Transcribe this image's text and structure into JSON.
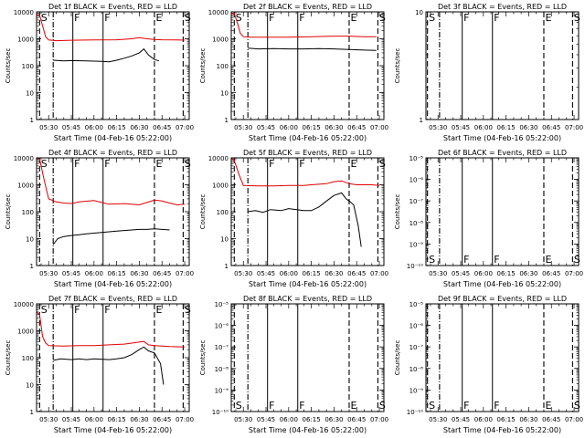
{
  "chart_data": [
    {
      "type": "line",
      "title": "Det 1f BLACK = Events, RED = LLD",
      "xlabel": "Start Time (04-Feb-16 05:22:00)",
      "ylabel": "Counts/sec",
      "xlim": [
        "05:22",
        "07:03"
      ],
      "ylim": [
        1,
        10000
      ],
      "log_y": true,
      "x_ticks": [
        "05:30",
        "05:45",
        "06:00",
        "06:15",
        "06:30",
        "06:45",
        "07:00"
      ],
      "y_ticks": [
        "1",
        "10",
        "100",
        "1000",
        "10000"
      ],
      "markers": [
        {
          "time": "05:24",
          "label": "S",
          "style": "dashed"
        },
        {
          "time": "05:33",
          "label": "",
          "style": "dashdot"
        },
        {
          "time": "05:46",
          "label": "F",
          "style": "solid"
        },
        {
          "time": "06:06",
          "label": "F",
          "style": "solid"
        },
        {
          "time": "06:40",
          "label": "E",
          "style": "dashed"
        },
        {
          "time": "06:59",
          "label": "S",
          "style": "dashed"
        }
      ],
      "series": [
        {
          "color": "#e00000",
          "x": [
            "05:22",
            "05:24",
            "05:26",
            "05:28",
            "05:30",
            "05:35",
            "05:45",
            "06:00",
            "06:15",
            "06:25",
            "06:30",
            "06:35",
            "06:40",
            "06:45",
            "06:55",
            "07:00"
          ],
          "y": [
            8000,
            7600,
            3000,
            1200,
            900,
            850,
            880,
            900,
            920,
            1000,
            1100,
            1000,
            950,
            920,
            900,
            890
          ]
        },
        {
          "color": "#000000",
          "x": [
            "05:33",
            "05:40",
            "05:45",
            "05:55",
            "06:05",
            "06:10",
            "06:15",
            "06:20",
            "06:25",
            "06:30",
            "06:33",
            "06:36",
            "06:40",
            "06:43"
          ],
          "y": [
            160,
            150,
            155,
            150,
            145,
            140,
            160,
            190,
            230,
            300,
            420,
            250,
            170,
            150
          ]
        }
      ]
    },
    {
      "type": "line",
      "title": "Det 2f BLACK = Events, RED = LLD",
      "xlabel": "Start Time (04-Feb-16 05:22:00)",
      "ylabel": "Counts/sec",
      "xlim": [
        "05:22",
        "07:03"
      ],
      "ylim": [
        1,
        10000
      ],
      "log_y": true,
      "x_ticks": [
        "05:30",
        "05:45",
        "06:00",
        "06:15",
        "06:30",
        "06:45",
        "07:00"
      ],
      "y_ticks": [
        "1",
        "10",
        "100",
        "1000",
        "10000"
      ],
      "markers": [
        {
          "time": "05:24",
          "label": "S",
          "style": "dashed"
        },
        {
          "time": "05:33",
          "label": "",
          "style": "dashdot"
        },
        {
          "time": "05:46",
          "label": "F",
          "style": "solid"
        },
        {
          "time": "06:06",
          "label": "F",
          "style": "solid"
        },
        {
          "time": "06:40",
          "label": "E",
          "style": "dashed"
        },
        {
          "time": "06:59",
          "label": "S",
          "style": "dashed"
        }
      ],
      "series": [
        {
          "color": "#e00000",
          "x": [
            "05:22",
            "05:24",
            "05:26",
            "05:28",
            "05:30",
            "05:35",
            "05:45",
            "06:00",
            "06:15",
            "06:30",
            "06:40",
            "06:50",
            "06:58"
          ],
          "y": [
            9000,
            8500,
            4000,
            1600,
            1200,
            1150,
            1150,
            1150,
            1200,
            1250,
            1250,
            1200,
            1200
          ]
        },
        {
          "color": "#000000",
          "x": [
            "05:33",
            "05:40",
            "05:50",
            "06:00",
            "06:10",
            "06:20",
            "06:30",
            "06:40",
            "06:50",
            "06:58"
          ],
          "y": [
            450,
            420,
            430,
            420,
            420,
            430,
            420,
            400,
            380,
            370
          ]
        }
      ]
    },
    {
      "type": "line",
      "title": "Det 3f BLACK = Events, RED = LLD",
      "xlabel": "Start Time (04-Feb-16 05:22:00)",
      "ylabel": "Counts/sec",
      "xlim": [
        "05:22",
        "07:03"
      ],
      "ylim": [
        1,
        10
      ],
      "log_y": true,
      "x_ticks": [
        "05:30",
        "05:45",
        "06:00",
        "06:15",
        "06:30",
        "06:45",
        "07:00"
      ],
      "y_ticks": [
        "1",
        "10"
      ],
      "markers": [
        {
          "time": "05:23",
          "label": "S",
          "style": "dashed"
        },
        {
          "time": "05:31",
          "label": "",
          "style": "dashdot"
        },
        {
          "time": "05:46",
          "label": "F",
          "style": "solid"
        },
        {
          "time": "06:06",
          "label": "F",
          "style": "solid"
        },
        {
          "time": "06:40",
          "label": "E",
          "style": "dashed"
        },
        {
          "time": "06:59",
          "label": "S",
          "style": "dashed"
        }
      ],
      "series": []
    },
    {
      "type": "line",
      "title": "Det 4f BLACK = Events, RED = LLD",
      "xlabel": "Start Time (04-Feb-16 05:22:00)",
      "ylabel": "Counts/sec",
      "xlim": [
        "05:22",
        "07:03"
      ],
      "ylim": [
        1,
        10000
      ],
      "log_y": true,
      "x_ticks": [
        "05:30",
        "05:45",
        "06:00",
        "06:15",
        "06:30",
        "06:45",
        "07:00"
      ],
      "y_ticks": [
        "1",
        "10",
        "100",
        "1000",
        "10000"
      ],
      "markers": [
        {
          "time": "05:24",
          "label": "S",
          "style": "dashed"
        },
        {
          "time": "05:33",
          "label": "",
          "style": "dashdot"
        },
        {
          "time": "05:46",
          "label": "F",
          "style": "solid"
        },
        {
          "time": "06:06",
          "label": "F",
          "style": "solid"
        },
        {
          "time": "06:40",
          "label": "E",
          "style": "dashed"
        },
        {
          "time": "06:59",
          "label": "S",
          "style": "dashed"
        }
      ],
      "series": [
        {
          "color": "#e00000",
          "x": [
            "05:22",
            "05:24",
            "05:27",
            "05:30",
            "05:35",
            "05:40",
            "05:45",
            "05:50",
            "06:00",
            "06:05",
            "06:10",
            "06:20",
            "06:30",
            "06:35",
            "06:40",
            "06:45",
            "06:50",
            "06:55",
            "07:00"
          ],
          "y": [
            10000,
            9000,
            1500,
            300,
            230,
            210,
            200,
            230,
            260,
            220,
            190,
            200,
            180,
            220,
            270,
            250,
            210,
            180,
            190
          ]
        },
        {
          "color": "#000000",
          "x": [
            "05:33",
            "05:36",
            "05:40",
            "05:45",
            "05:50",
            "05:55",
            "06:00",
            "06:05",
            "06:10",
            "06:15",
            "06:20",
            "06:25",
            "06:30",
            "06:35",
            "06:40",
            "06:45",
            "06:50"
          ],
          "y": [
            6,
            10,
            12,
            13,
            14,
            15,
            16,
            17,
            18,
            19,
            20,
            21,
            22,
            22,
            23,
            22,
            21
          ]
        }
      ]
    },
    {
      "type": "line",
      "title": "Det 5f BLACK = Events, RED = LLD",
      "xlabel": "Start Time (04-Feb-16 05:22:00)",
      "ylabel": "Counts/sec",
      "xlim": [
        "05:22",
        "07:03"
      ],
      "ylim": [
        1,
        10000
      ],
      "log_y": true,
      "x_ticks": [
        "05:30",
        "05:45",
        "06:00",
        "06:15",
        "06:30",
        "06:45",
        "07:00"
      ],
      "y_ticks": [
        "1",
        "10",
        "100",
        "1000",
        "10000"
      ],
      "markers": [
        {
          "time": "05:24",
          "label": "",
          "style": "dashed"
        },
        {
          "time": "05:33",
          "label": "",
          "style": "dashdot"
        },
        {
          "time": "05:46",
          "label": "F",
          "style": "solid"
        },
        {
          "time": "06:06",
          "label": "F",
          "style": "solid"
        },
        {
          "time": "06:40",
          "label": "E",
          "style": "dashed"
        },
        {
          "time": "06:59",
          "label": "S",
          "style": "dashed"
        }
      ],
      "series": [
        {
          "color": "#e00000",
          "x": [
            "05:22",
            "05:24",
            "05:27",
            "05:30",
            "05:40",
            "05:50",
            "06:00",
            "06:10",
            "06:15",
            "06:25",
            "06:30",
            "06:35",
            "06:40",
            "06:45",
            "06:55",
            "07:00"
          ],
          "y": [
            10000,
            8000,
            2500,
            950,
            900,
            900,
            950,
            950,
            1000,
            1100,
            1300,
            1400,
            1100,
            1000,
            1000,
            950
          ]
        },
        {
          "color": "#000000",
          "x": [
            "05:33",
            "05:38",
            "05:43",
            "05:48",
            "05:55",
            "06:00",
            "06:10",
            "06:15",
            "06:20",
            "06:25",
            "06:30",
            "06:35",
            "06:38",
            "06:40",
            "06:43",
            "06:46",
            "06:48"
          ],
          "y": [
            100,
            110,
            95,
            120,
            110,
            130,
            110,
            110,
            150,
            250,
            400,
            500,
            300,
            250,
            180,
            30,
            5
          ]
        }
      ]
    },
    {
      "type": "line",
      "title": "Det 6f BLACK = Events, RED = LLD",
      "xlabel": "Start Time (04-Feb-16 05:22:00)",
      "ylabel": "Counts/sec",
      "xlim": [
        "05:22",
        "07:03"
      ],
      "ylim": [
        1e-10,
        1e-05
      ],
      "log_y": true,
      "x_ticks": [
        "05:30",
        "05:45",
        "06:00",
        "06:15",
        "06:30",
        "06:45",
        "07:00"
      ],
      "y_ticks": [
        "10⁻¹⁰",
        "10⁻⁹",
        "10⁻⁸",
        "10⁻⁷",
        "10⁻⁶",
        "10⁻⁵"
      ],
      "markers": [
        {
          "time": "05:23",
          "label": "S",
          "style": "dashed"
        },
        {
          "time": "05:31",
          "label": "",
          "style": "dashdot"
        },
        {
          "time": "05:46",
          "label": "F",
          "style": "solid"
        },
        {
          "time": "06:06",
          "label": "F",
          "style": "solid"
        },
        {
          "time": "06:40",
          "label": "E",
          "style": "dashed"
        },
        {
          "time": "06:59",
          "label": "S",
          "style": "dashed"
        }
      ],
      "series": []
    },
    {
      "type": "line",
      "title": "Det 7f BLACK = Events, RED = LLD",
      "xlabel": "Start Time (04-Feb-16 05:22:00)",
      "ylabel": "Counts/sec",
      "xlim": [
        "05:22",
        "07:03"
      ],
      "ylim": [
        1,
        10000
      ],
      "log_y": true,
      "x_ticks": [
        "05:30",
        "05:45",
        "06:00",
        "06:15",
        "06:30",
        "06:45",
        "07:00"
      ],
      "y_ticks": [
        "1",
        "10",
        "100",
        "1000",
        "10000"
      ],
      "markers": [
        {
          "time": "05:24",
          "label": "S",
          "style": "dashed"
        },
        {
          "time": "05:33",
          "label": "",
          "style": "dashdot"
        },
        {
          "time": "05:46",
          "label": "F",
          "style": "solid"
        },
        {
          "time": "06:06",
          "label": "F",
          "style": "solid"
        },
        {
          "time": "06:40",
          "label": "E",
          "style": "dashed"
        },
        {
          "time": "06:59",
          "label": "S",
          "style": "dashed"
        }
      ],
      "series": [
        {
          "color": "#e00000",
          "x": [
            "05:22",
            "05:24",
            "05:26",
            "05:28",
            "05:30",
            "05:40",
            "05:50",
            "06:00",
            "06:10",
            "06:20",
            "06:30",
            "06:33",
            "06:36",
            "06:40",
            "06:50",
            "07:00"
          ],
          "y": [
            5000,
            4000,
            600,
            350,
            280,
            270,
            280,
            280,
            300,
            320,
            380,
            400,
            300,
            280,
            260,
            250
          ]
        },
        {
          "color": "#000000",
          "x": [
            "05:33",
            "05:38",
            "05:45",
            "05:50",
            "05:55",
            "06:00",
            "06:10",
            "06:15",
            "06:20",
            "06:25",
            "06:30",
            "06:33",
            "06:36",
            "06:40",
            "06:44",
            "06:46"
          ],
          "y": [
            80,
            90,
            85,
            90,
            85,
            90,
            85,
            90,
            100,
            130,
            200,
            250,
            180,
            150,
            60,
            10
          ]
        }
      ]
    },
    {
      "type": "line",
      "title": "Det 8f BLACK = Events, RED = LLD",
      "xlabel": "Start Time (04-Feb-16 05:22:00)",
      "ylabel": "Counts/sec",
      "xlim": [
        "05:22",
        "07:03"
      ],
      "ylim": [
        1e-10,
        1e-05
      ],
      "log_y": true,
      "x_ticks": [
        "05:30",
        "05:45",
        "06:00",
        "06:15",
        "06:30",
        "06:45",
        "07:00"
      ],
      "y_ticks": [
        "10⁻¹⁰",
        "10⁻⁹",
        "10⁻⁸",
        "10⁻⁷",
        "10⁻⁶",
        "10⁻⁵"
      ],
      "markers": [
        {
          "time": "05:24",
          "label": "S",
          "style": "dashed"
        },
        {
          "time": "05:33",
          "label": "",
          "style": "dashdot"
        },
        {
          "time": "05:46",
          "label": "F",
          "style": "solid"
        },
        {
          "time": "06:06",
          "label": "F",
          "style": "solid"
        },
        {
          "time": "06:40",
          "label": "E",
          "style": "dashed"
        },
        {
          "time": "06:59",
          "label": "S",
          "style": "dashed"
        }
      ],
      "series": []
    },
    {
      "type": "line",
      "title": "Det 9f BLACK = Events, RED = LLD",
      "xlabel": "Start Time (04-Feb-16 05:22:00)",
      "ylabel": "Counts/sec",
      "xlim": [
        "05:22",
        "07:03"
      ],
      "ylim": [
        1e-10,
        1e-05
      ],
      "log_y": true,
      "x_ticks": [
        "05:30",
        "05:45",
        "06:00",
        "06:15",
        "06:30",
        "06:45",
        "07:00"
      ],
      "y_ticks": [
        "10⁻¹⁰",
        "10⁻⁹",
        "10⁻⁸",
        "10⁻⁷",
        "10⁻⁶",
        "10⁻⁵"
      ],
      "markers": [
        {
          "time": "05:23",
          "label": "S",
          "style": "dashed"
        },
        {
          "time": "05:31",
          "label": "",
          "style": "dashdot"
        },
        {
          "time": "05:46",
          "label": "F",
          "style": "solid"
        },
        {
          "time": "06:06",
          "label": "F",
          "style": "solid"
        },
        {
          "time": "06:40",
          "label": "E",
          "style": "dashed"
        },
        {
          "time": "06:59",
          "label": "S",
          "style": "dashed"
        }
      ],
      "series": []
    }
  ]
}
